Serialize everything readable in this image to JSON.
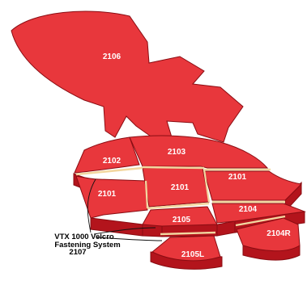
{
  "diagram": {
    "top_panel": {
      "label": "2106"
    },
    "pieces": [
      {
        "id": "p2102",
        "label": "2102"
      },
      {
        "id": "p2103",
        "label": "2103"
      },
      {
        "id": "p2101_right",
        "label": "2101"
      },
      {
        "id": "p2101_left",
        "label": "2101"
      },
      {
        "id": "p2101_center",
        "label": "2101"
      },
      {
        "id": "p2105",
        "label": "2105"
      },
      {
        "id": "p2104",
        "label": "2104"
      },
      {
        "id": "p2104R",
        "label": "2104R"
      },
      {
        "id": "p2105L",
        "label": "2105L"
      }
    ],
    "fastening_caption": {
      "line1": "VTX 1000 Velcro",
      "line2": "Fastening System",
      "line3": "2107"
    },
    "colors": {
      "piece_top": "#e8373c",
      "piece_side": "#b3141c",
      "piece_edge": "#8a0c12",
      "velcro_strip": "#f2d7a0"
    }
  }
}
